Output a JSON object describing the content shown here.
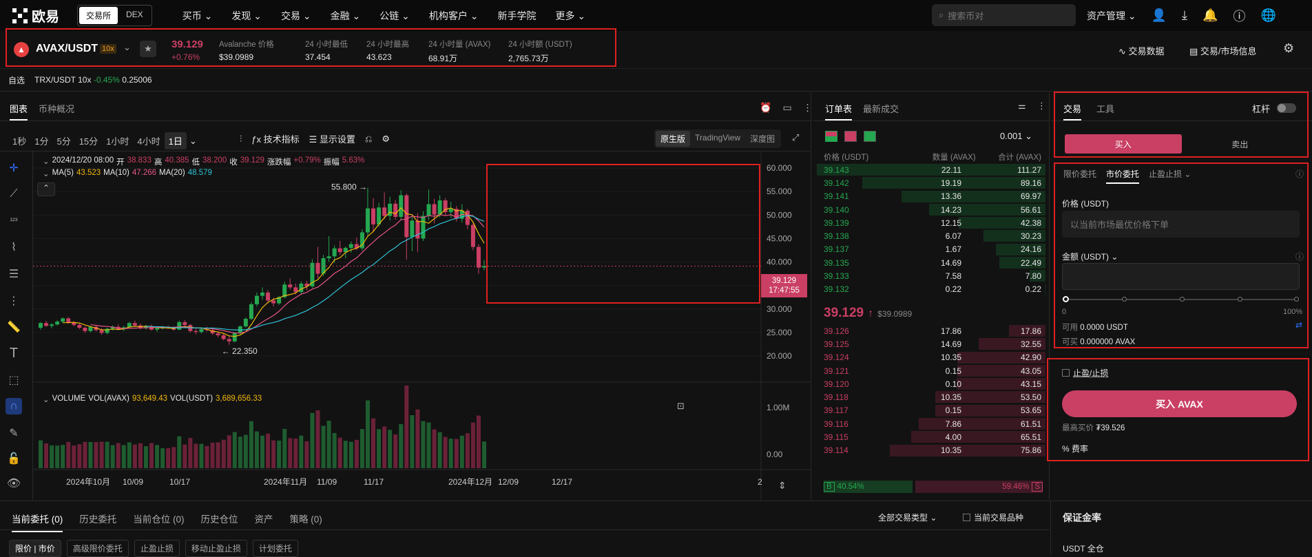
{
  "nav": {
    "brand": "欧易",
    "exchange_toggle": [
      "交易所",
      "DEX"
    ],
    "menu": [
      "买币",
      "发现",
      "交易",
      "金融",
      "公链",
      "机构客户",
      "新手学院",
      "更多"
    ],
    "search_placeholder": "搜索币对",
    "asset_mgmt": "资产管理"
  },
  "ticker": {
    "pair": "AVAX/USDT",
    "leverage": "10x",
    "last_price": "39.129",
    "change_pct": "+0.76%",
    "stats": [
      {
        "label": "Avalanche 价格",
        "value": "$39.0989"
      },
      {
        "label": "24 小时最低",
        "value": "37.454"
      },
      {
        "label": "24 小时最高",
        "value": "43.623"
      },
      {
        "label": "24 小时量 (AVAX)",
        "value": "68.91万"
      },
      {
        "label": "24 小时额 (USDT)",
        "value": "2,765.73万"
      }
    ],
    "trade_data": "交易数据",
    "market_info": "交易/市场信息"
  },
  "favorites": {
    "label": "自选",
    "item_pair": "TRX/USDT 10x",
    "item_change": "-0.45%",
    "item_price": "0.25006"
  },
  "chart_panel": {
    "tabs": [
      "图表",
      "币种概况"
    ],
    "intervals": [
      "1秒",
      "1分",
      "5分",
      "15分",
      "1小时",
      "4小时",
      "1日"
    ],
    "indicator_btn": "技术指标",
    "display_btn": "显示设置",
    "views": [
      "原生版",
      "TradingView",
      "深度图"
    ],
    "ohlc": {
      "date": "2024/12/20 08:00",
      "open_label": "开",
      "open": "38.833",
      "high_label": "高",
      "high": "40.385",
      "low_label": "低",
      "low": "38.200",
      "close_label": "收",
      "close": "39.129",
      "chg_label": "涨跌幅",
      "chg": "+0.79%",
      "amp_label": "振幅",
      "amp": "5.63%"
    },
    "ma": {
      "ma5_label": "MA(5)",
      "ma5": "43.523",
      "ma10_label": "MA(10)",
      "ma10": "47.266",
      "ma20_label": "MA(20)",
      "ma20": "48.579"
    },
    "price_axis": [
      "60.000",
      "55.000",
      "50.000",
      "45.000",
      "40.000",
      "35.000",
      "30.000",
      "25.000",
      "20.000"
    ],
    "current_price_tag": "39.129",
    "countdown": "17:47:55",
    "high_marker": "55.800",
    "low_marker": "22.350",
    "volume_header": {
      "label": "VOLUME",
      "vol_avax_label": "VOL(AVAX)",
      "vol_avax": "93,649.43",
      "vol_usdt_label": "VOL(USDT)",
      "vol_usdt": "3,689,656.33"
    },
    "volume_axis": [
      "1.00M",
      "0.00"
    ],
    "date_axis": [
      "2024年10月",
      "10/09",
      "10/17",
      "2024年11月",
      "11/09",
      "11/17",
      "2024年12月",
      "12/09",
      "12/17",
      "2"
    ]
  },
  "chart_data": {
    "type": "candlestick",
    "ylim": [
      20,
      60
    ],
    "candles_ohlc": [
      [
        26.0,
        27.2,
        25.6,
        27.0
      ],
      [
        27.0,
        27.5,
        26.2,
        26.4
      ],
      [
        26.4,
        27.0,
        25.9,
        26.7
      ],
      [
        26.7,
        27.6,
        26.5,
        27.3
      ],
      [
        27.3,
        28.2,
        27.0,
        28.0
      ],
      [
        28.0,
        28.3,
        26.8,
        27.1
      ],
      [
        27.1,
        27.4,
        26.3,
        26.6
      ],
      [
        26.6,
        26.9,
        25.7,
        26.0
      ],
      [
        26.0,
        26.3,
        24.9,
        25.3
      ],
      [
        25.3,
        26.4,
        25.0,
        26.2
      ],
      [
        26.2,
        26.6,
        25.2,
        25.5
      ],
      [
        25.5,
        25.9,
        24.5,
        24.9
      ],
      [
        24.9,
        26.0,
        24.6,
        25.8
      ],
      [
        25.8,
        26.5,
        25.4,
        26.2
      ],
      [
        26.2,
        26.8,
        25.5,
        25.7
      ],
      [
        25.7,
        26.4,
        25.3,
        26.1
      ],
      [
        26.1,
        27.3,
        25.9,
        27.0
      ],
      [
        27.0,
        27.5,
        26.3,
        26.5
      ],
      [
        26.5,
        26.9,
        25.6,
        25.9
      ],
      [
        25.9,
        26.6,
        25.6,
        26.3
      ],
      [
        26.3,
        26.7,
        25.4,
        25.6
      ],
      [
        25.6,
        26.2,
        25.1,
        25.9
      ],
      [
        25.9,
        26.4,
        25.6,
        26.1
      ],
      [
        26.1,
        26.5,
        25.7,
        25.9
      ],
      [
        25.9,
        26.3,
        25.4,
        25.6
      ],
      [
        25.6,
        27.5,
        25.5,
        27.2
      ],
      [
        27.2,
        27.6,
        26.4,
        26.6
      ],
      [
        26.6,
        26.8,
        25.0,
        25.3
      ],
      [
        25.3,
        25.8,
        24.6,
        25.1
      ],
      [
        25.1,
        26.0,
        24.8,
        25.7
      ],
      [
        25.7,
        26.2,
        25.2,
        25.5
      ],
      [
        25.5,
        25.8,
        24.5,
        24.8
      ],
      [
        24.8,
        25.3,
        24.0,
        24.4
      ],
      [
        24.4,
        24.8,
        23.3,
        23.6
      ],
      [
        23.6,
        24.2,
        22.35,
        23.1
      ],
      [
        23.1,
        25.1,
        22.9,
        24.9
      ],
      [
        24.9,
        26.5,
        24.6,
        26.3
      ],
      [
        26.3,
        28.2,
        26.0,
        27.9
      ],
      [
        27.9,
        31.5,
        27.6,
        31.0
      ],
      [
        31.0,
        33.5,
        30.5,
        32.8
      ],
      [
        32.8,
        34.6,
        32.0,
        33.5
      ],
      [
        33.5,
        34.0,
        31.2,
        31.8
      ],
      [
        31.8,
        32.4,
        30.5,
        31.2
      ],
      [
        31.2,
        32.8,
        30.9,
        32.5
      ],
      [
        32.5,
        35.8,
        32.3,
        35.2
      ],
      [
        35.2,
        36.5,
        34.1,
        34.6
      ],
      [
        34.6,
        35.4,
        33.1,
        33.6
      ],
      [
        33.6,
        35.9,
        33.2,
        35.4
      ],
      [
        35.4,
        36.0,
        34.0,
        34.8
      ],
      [
        34.8,
        40.6,
        34.5,
        39.8
      ],
      [
        39.8,
        43.2,
        36.5,
        37.5
      ],
      [
        37.5,
        41.5,
        37.0,
        40.8
      ],
      [
        40.8,
        45.5,
        40.0,
        41.2
      ],
      [
        41.2,
        43.5,
        39.8,
        42.9
      ],
      [
        42.9,
        44.5,
        41.5,
        42.1
      ],
      [
        42.1,
        43.3,
        40.8,
        43.0
      ],
      [
        43.0,
        44.4,
        42.0,
        43.8
      ],
      [
        43.8,
        45.2,
        42.5,
        42.9
      ],
      [
        42.9,
        47.0,
        42.4,
        46.3
      ],
      [
        46.3,
        55.8,
        45.5,
        51.4
      ],
      [
        51.4,
        53.6,
        46.5,
        48.0
      ],
      [
        48.0,
        52.6,
        47.5,
        51.6
      ],
      [
        51.6,
        54.8,
        49.1,
        49.8
      ],
      [
        49.8,
        53.9,
        48.8,
        52.4
      ],
      [
        52.4,
        53.2,
        49.0,
        49.6
      ],
      [
        49.6,
        55.3,
        49.0,
        54.2
      ],
      [
        54.2,
        54.6,
        40.5,
        45.3
      ],
      [
        45.3,
        49.6,
        42.3,
        48.8
      ],
      [
        48.8,
        50.4,
        42.1,
        45.0
      ],
      [
        45.0,
        50.8,
        44.5,
        49.8
      ],
      [
        49.8,
        55.4,
        48.9,
        52.3
      ],
      [
        52.3,
        53.4,
        48.2,
        50.1
      ],
      [
        50.1,
        54.2,
        49.5,
        53.1
      ],
      [
        53.1,
        53.6,
        49.8,
        50.6
      ],
      [
        50.6,
        52.8,
        49.4,
        51.3
      ],
      [
        51.3,
        51.9,
        48.6,
        49.2
      ],
      [
        49.2,
        52.3,
        48.4,
        50.9
      ],
      [
        50.9,
        51.3,
        47.0,
        47.9
      ],
      [
        47.9,
        48.3,
        42.5,
        43.2
      ],
      [
        43.2,
        43.8,
        37.5,
        38.8
      ],
      [
        38.83,
        40.385,
        38.2,
        39.129
      ]
    ],
    "volume_max": 1400000
  },
  "orderbook": {
    "tabs": [
      "订单表",
      "最新成交"
    ],
    "tick": "0.001",
    "cols": [
      "价格 (USDT)",
      "数量 (AVAX)",
      "合计 (AVAX)"
    ],
    "asks": [
      [
        "39.126",
        "17.86",
        "17.86"
      ],
      [
        "39.125",
        "14.69",
        "32.55"
      ],
      [
        "39.124",
        "10.35",
        "42.90"
      ],
      [
        "39.121",
        "0.15",
        "43.05"
      ],
      [
        "39.120",
        "0.10",
        "43.15"
      ],
      [
        "39.118",
        "10.35",
        "53.50"
      ],
      [
        "39.117",
        "0.15",
        "53.65"
      ],
      [
        "39.116",
        "7.86",
        "61.51"
      ],
      [
        "39.115",
        "4.00",
        "65.51"
      ],
      [
        "39.114",
        "10.35",
        "75.86"
      ]
    ],
    "bids": [
      [
        "39.143",
        "22.11",
        "111.27"
      ],
      [
        "39.142",
        "19.19",
        "89.16"
      ],
      [
        "39.141",
        "13.36",
        "69.97"
      ],
      [
        "39.140",
        "14.23",
        "56.61"
      ],
      [
        "39.139",
        "12.15",
        "42.38"
      ],
      [
        "39.138",
        "6.07",
        "30.23"
      ],
      [
        "39.137",
        "1.67",
        "24.16"
      ],
      [
        "39.135",
        "14.69",
        "22.49"
      ],
      [
        "39.133",
        "7.58",
        "7.80"
      ],
      [
        "39.132",
        "0.22",
        "0.22"
      ]
    ],
    "mid_price": "39.129",
    "mid_usd": "$39.0989",
    "buy_pct": "40.54%",
    "sell_pct": "59.46%",
    "buy_label": "B",
    "sell_label": "S"
  },
  "trade": {
    "tabs": [
      "交易",
      "工具"
    ],
    "leverage_label": "杠杆",
    "buy_tab": "买入",
    "sell_tab": "卖出",
    "order_types": [
      "限价委托",
      "市价委托",
      "止盈止损"
    ],
    "price_label": "价格 (USDT)",
    "price_placeholder": "以当前市场最优价格下单",
    "amount_label": "金额 (USDT)",
    "slider_min": "0",
    "slider_max": "100%",
    "available_label": "可用",
    "available": "0.0000 USDT",
    "can_buy_label": "可买",
    "can_buy": "0.000000 AVAX",
    "tpsl_label": "止盈/止损",
    "buy_button": "买入 AVAX",
    "max_buy_label": "最高买价",
    "max_buy": "₮39.526",
    "fee_label": "费率"
  },
  "bottom": {
    "tabs": [
      "当前委托 (0)",
      "历史委托",
      "当前仓位 (0)",
      "历史仓位",
      "资产",
      "策略 (0)"
    ],
    "filter": "全部交易类型",
    "only_current": "当前交易品种",
    "subtabs": [
      "限价 | 市价",
      "高级限价委托",
      "止盈止损",
      "移动止盈止损",
      "计划委托"
    ],
    "margin_title": "保证金率",
    "margin_mode": "USDT 全仓"
  }
}
